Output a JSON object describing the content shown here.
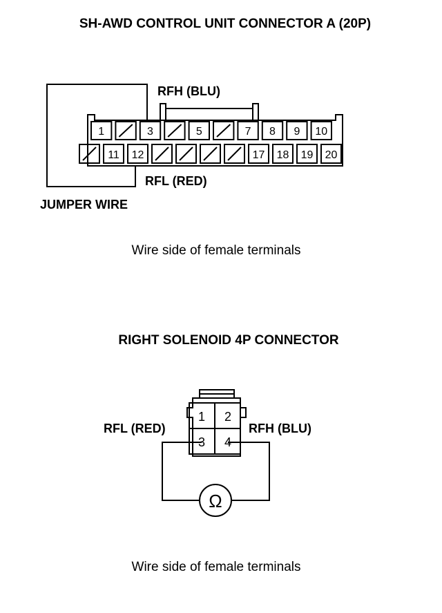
{
  "top": {
    "title": "SH-AWD CONTROL UNIT CONNECTOR A (20P)",
    "rfh_label": "RFH (BLU)",
    "rfl_label": "RFL (RED)",
    "jumper_label": "JUMPER WIRE",
    "caption": "Wire side of female terminals",
    "row1": [
      "1",
      "",
      "3",
      "",
      "5",
      "",
      "7",
      "8",
      "9",
      "10"
    ],
    "row2": [
      "",
      "11",
      "12",
      "",
      "",
      "",
      "",
      "17",
      "18",
      "19",
      "20"
    ]
  },
  "bottom": {
    "title": "RIGHT SOLENOID 4P CONNECTOR",
    "rfl_label": "RFL (RED)",
    "rfh_label": "RFH (BLU)",
    "pins": [
      "1",
      "2",
      "3",
      "4"
    ],
    "meter_symbol": "Ω",
    "caption": "Wire side of female terminals"
  }
}
